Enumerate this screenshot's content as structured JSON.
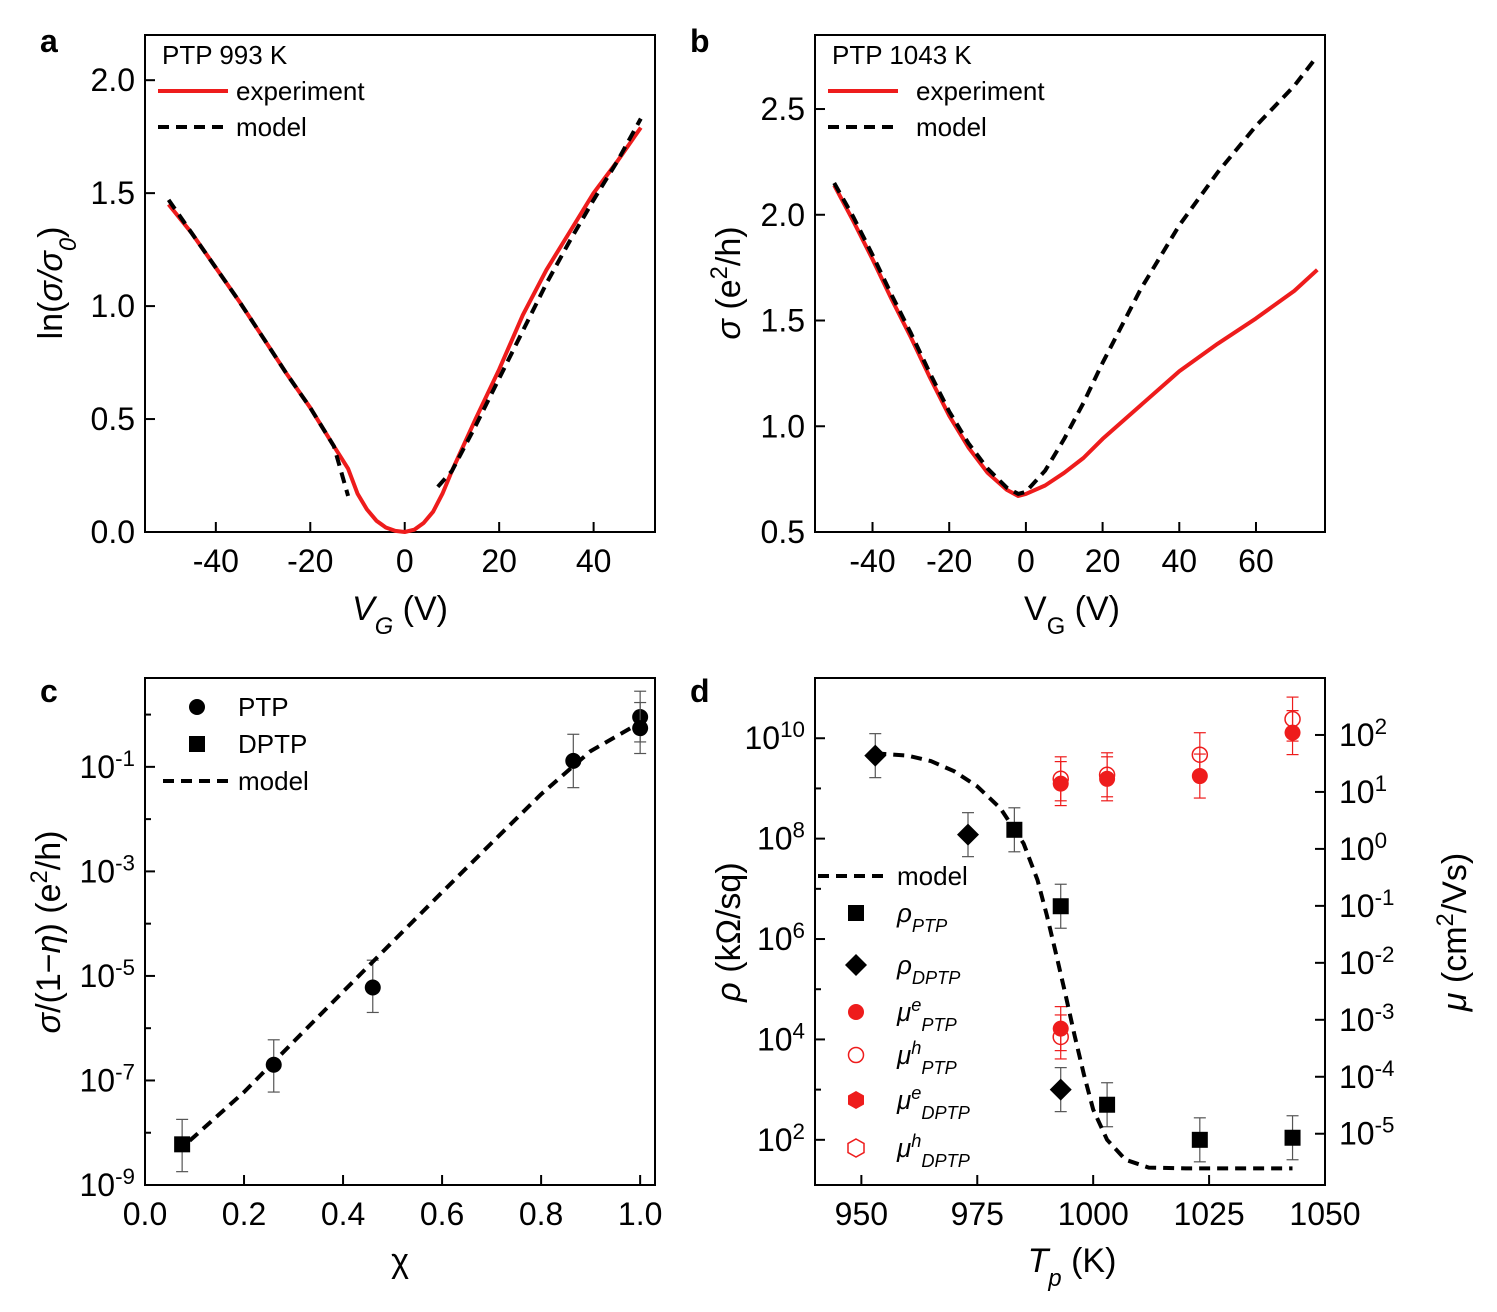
{
  "chart_data": [
    {
      "panel": "a",
      "type": "line",
      "annotation": "PTP 993 K",
      "xlabel": "V_G (V)",
      "ylabel": "ln(σ/σ0)",
      "xlim": [
        -55,
        53
      ],
      "ylim": [
        0,
        2.2
      ],
      "xticks": [
        -40,
        -20,
        0,
        20,
        40
      ],
      "yticks": [
        0.0,
        0.5,
        1.0,
        1.5,
        2.0
      ],
      "xtick_labels": [
        "-40",
        "-20",
        "0",
        "20",
        "40"
      ],
      "ytick_labels": [
        "0.0",
        "0.5",
        "1.0",
        "1.5",
        "2.0"
      ],
      "legend": [
        "experiment",
        "model"
      ],
      "series": [
        {
          "name": "experiment",
          "color": "#ee1c1c",
          "style": "solid",
          "x": [
            -50,
            -45,
            -40,
            -35,
            -30,
            -25,
            -20,
            -15,
            -12,
            -10,
            -8,
            -6,
            -4,
            -2,
            0,
            2,
            4,
            6,
            8,
            10,
            15,
            20,
            25,
            30,
            35,
            40,
            45,
            50
          ],
          "y": [
            1.45,
            1.32,
            1.17,
            1.02,
            0.86,
            0.7,
            0.55,
            0.38,
            0.28,
            0.17,
            0.1,
            0.05,
            0.02,
            0.005,
            0.0,
            0.01,
            0.04,
            0.09,
            0.17,
            0.27,
            0.5,
            0.72,
            0.96,
            1.16,
            1.33,
            1.5,
            1.64,
            1.79
          ]
        },
        {
          "name": "model",
          "color": "#000000",
          "style": "dashed",
          "x": [
            -50,
            -45,
            -40,
            -35,
            -30,
            -25,
            -20,
            -15,
            -12
          ],
          "y": [
            1.47,
            1.32,
            1.17,
            1.02,
            0.86,
            0.7,
            0.55,
            0.38,
            0.16
          ]
        },
        {
          "name": "model",
          "color": "#000000",
          "style": "dashed",
          "x": [
            7,
            10,
            15,
            20,
            25,
            30,
            35,
            40,
            45,
            50
          ],
          "y": [
            0.2,
            0.27,
            0.47,
            0.68,
            0.89,
            1.1,
            1.29,
            1.47,
            1.64,
            1.83
          ]
        }
      ]
    },
    {
      "panel": "b",
      "type": "line",
      "annotation": "PTP 1043 K",
      "xlabel": "V_G (V)",
      "ylabel": "σ (e²/h)",
      "xlim": [
        -55,
        78
      ],
      "ylim": [
        0.5,
        2.85
      ],
      "xticks": [
        -40,
        -20,
        0,
        20,
        40,
        60
      ],
      "yticks": [
        0.5,
        1.0,
        1.5,
        2.0,
        2.5
      ],
      "xtick_labels": [
        "-40",
        "-20",
        "0",
        "20",
        "40",
        "60"
      ],
      "ytick_labels": [
        "0.5",
        "1.0",
        "1.5",
        "2.0",
        "2.5"
      ],
      "legend": [
        "experiment",
        "model"
      ],
      "series": [
        {
          "name": "experiment",
          "color": "#ee1c1c",
          "style": "solid",
          "x": [
            -50,
            -45,
            -40,
            -35,
            -30,
            -25,
            -20,
            -15,
            -10,
            -5,
            -2,
            0,
            5,
            10,
            15,
            20,
            30,
            40,
            50,
            60,
            70,
            76
          ],
          "y": [
            2.14,
            1.97,
            1.79,
            1.6,
            1.42,
            1.23,
            1.05,
            0.9,
            0.78,
            0.7,
            0.67,
            0.68,
            0.72,
            0.78,
            0.85,
            0.94,
            1.1,
            1.26,
            1.39,
            1.51,
            1.64,
            1.74
          ]
        },
        {
          "name": "model",
          "color": "#000000",
          "style": "dashed",
          "x": [
            -50,
            -45,
            -40,
            -35,
            -30,
            -25,
            -20,
            -15,
            -10,
            -5,
            -2,
            0,
            5,
            10,
            15,
            20,
            30,
            40,
            50,
            60,
            70,
            76
          ],
          "y": [
            2.15,
            1.99,
            1.81,
            1.62,
            1.44,
            1.25,
            1.07,
            0.92,
            0.8,
            0.71,
            0.68,
            0.69,
            0.79,
            0.94,
            1.11,
            1.3,
            1.65,
            1.95,
            2.2,
            2.42,
            2.61,
            2.75
          ]
        }
      ]
    },
    {
      "panel": "c",
      "type": "scatter",
      "xlabel": "χ",
      "ylabel": "σ/(1−η) (e²/h)",
      "xlim": [
        0,
        1.03
      ],
      "ylim": [
        -9,
        0.7
      ],
      "yscale": "log",
      "xticks": [
        0.0,
        0.2,
        0.4,
        0.6,
        0.8,
        1.0
      ],
      "xtick_labels": [
        "0.0",
        "0.2",
        "0.4",
        "0.6",
        "0.8",
        "1.0"
      ],
      "ytick_labels": [
        "10-9",
        "10-7",
        "10-5",
        "10-3",
        "10-1"
      ],
      "legend": [
        "PTP",
        "DPTP",
        "model"
      ],
      "series": [
        {
          "name": "PTP",
          "marker": "circle",
          "color": "#000000",
          "x": [
            0.26,
            0.46,
            0.865,
            1.0,
            1.0
          ],
          "y": [
            2e-07,
            6e-06,
            0.13,
            0.9,
            0.55
          ],
          "err_low": [
            6e-08,
            2e-06,
            0.04,
            0.3,
            0.18
          ],
          "err_high": [
            6e-07,
            2e-05,
            0.42,
            2.8,
            1.7
          ]
        },
        {
          "name": "DPTP",
          "marker": "square",
          "color": "#000000",
          "x": [
            0.075
          ],
          "y": [
            6e-09
          ],
          "err_low": [
            1.8e-09
          ],
          "err_high": [
            1.8e-08
          ]
        },
        {
          "name": "model",
          "style": "dashed",
          "color": "#000000",
          "x": [
            0.09,
            0.2,
            0.3,
            0.4,
            0.5,
            0.6,
            0.7,
            0.8,
            0.9,
            1.0
          ],
          "y": [
            7e-09,
            6e-08,
            5.5e-07,
            5e-06,
            4.5e-05,
            0.0004,
            0.0035,
            0.03,
            0.2,
            0.7
          ]
        }
      ]
    },
    {
      "panel": "d",
      "type": "scatter",
      "xlabel": "T_p (K)",
      "ylabel": "ρ (kΩ/sq)",
      "ylabel_right": "μ (cm²/Vs)",
      "xlim": [
        940,
        1050
      ],
      "xticks": [
        950,
        975,
        1000,
        1025,
        1050
      ],
      "xtick_labels": [
        "950",
        "975",
        "1000",
        "1025",
        "1050"
      ],
      "ylim_left": [
        1.1,
        11.2
      ],
      "yscale_left": "log",
      "ytick_labels_left": [
        "10²",
        "10⁴",
        "10⁶",
        "10⁸",
        "10¹⁰"
      ],
      "ylim_right": [
        -5.9,
        3.0
      ],
      "yscale_right": "log",
      "ytick_labels_right": [
        "10-5",
        "10-4",
        "10-3",
        "10-2",
        "10-1",
        "10⁰",
        "10¹",
        "10²"
      ],
      "legend": [
        "model",
        "ρ_PTP",
        "ρ_DPTP",
        "μ^e_PTP",
        "μ^h_PTP",
        "μ^e_DPTP",
        "μ^h_DPTP"
      ],
      "series": [
        {
          "name": "ρ_PTP",
          "marker": "square",
          "color": "#000000",
          "axis": "left",
          "x": [
            983,
            993,
            1003,
            1023,
            1043
          ],
          "y": [
            150000000.0,
            4500000.0,
            500,
            100,
            110
          ]
        },
        {
          "name": "ρ_DPTP",
          "marker": "diamond",
          "color": "#000000",
          "axis": "left",
          "x": [
            953,
            973,
            993
          ],
          "y": [
            4500000000.0,
            120000000.0,
            1000
          ]
        },
        {
          "name": "μ^e_PTP",
          "marker": "circle-filled",
          "color": "#ee1c1c",
          "axis": "right",
          "x": [
            993,
            1003,
            1023,
            1043,
            993
          ],
          "y": [
            14,
            17,
            19,
            110,
            0.0007
          ]
        },
        {
          "name": "μ^h_PTP",
          "marker": "circle-open",
          "color": "#ee1c1c",
          "axis": "right",
          "x": [
            993,
            1003,
            1023,
            1043,
            993
          ],
          "y": [
            17,
            20,
            45,
            190,
            0.0005
          ]
        },
        {
          "name": "model",
          "style": "dashed",
          "color": "#000000",
          "axis": "left",
          "x": [
            953,
            960,
            965,
            970,
            975,
            980,
            985,
            988,
            990,
            992,
            994,
            996,
            998,
            1000,
            1003,
            1007,
            1012,
            1020,
            1030,
            1043
          ],
          "y": [
            5000000000.0,
            4500000000.0,
            3500000000.0,
            2200000000.0,
            1100000000.0,
            400000000.0,
            80000000.0,
            15000000.0,
            3000000.0,
            500000.0,
            80000.0,
            12000.0,
            2000,
            400,
            100,
            40,
            28,
            27,
            27,
            27
          ]
        }
      ]
    }
  ]
}
